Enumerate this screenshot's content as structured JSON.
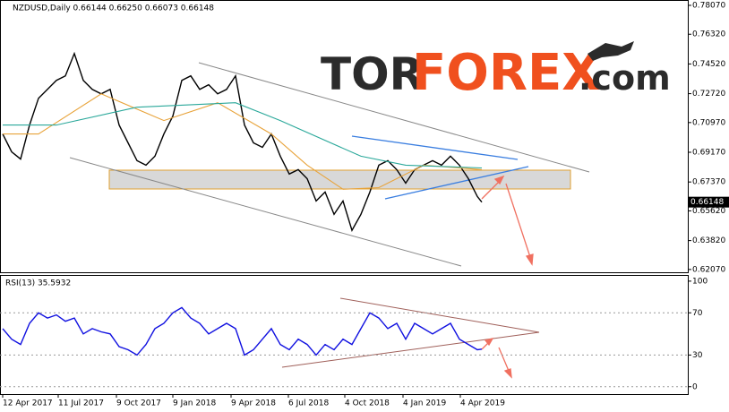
{
  "chart_data": [
    {
      "type": "line",
      "title": "NZDUSD,Daily  0.66144 0.66250 0.66073 0.66148",
      "last_price_label": "0.66148",
      "watermark": {
        "part1": "TOR",
        "part2": "FOREX",
        "part3": ".com"
      },
      "xlim": [
        -3,
        765
      ],
      "ylim": [
        0.619,
        0.7834
      ],
      "yticks": [
        {
          "value": 0.7807,
          "label": "0.78070"
        },
        {
          "value": 0.7632,
          "label": "0.76320"
        },
        {
          "value": 0.7452,
          "label": "0.74520"
        },
        {
          "value": 0.7272,
          "label": "0.72720"
        },
        {
          "value": 0.7097,
          "label": "0.70970"
        },
        {
          "value": 0.6917,
          "label": "0.69170"
        },
        {
          "value": 0.6737,
          "label": "0.67370"
        },
        {
          "value": 0.6562,
          "label": "0.65620"
        },
        {
          "value": 0.6382,
          "label": "0.63820"
        },
        {
          "value": 0.6207,
          "label": "0.62070"
        }
      ],
      "series": [
        {
          "color": "#000000",
          "x": [
            0,
            10,
            20,
            30,
            40,
            50,
            60,
            70,
            80,
            90,
            100,
            110,
            120,
            130,
            140,
            150,
            160,
            170,
            180,
            190,
            200,
            210,
            220,
            230,
            240,
            250,
            260,
            270,
            280,
            290,
            300,
            310,
            320,
            330,
            340,
            350,
            360,
            370,
            380,
            390,
            400,
            410,
            420,
            430,
            440,
            450,
            460,
            470,
            480,
            490,
            500,
            510,
            520,
            530,
            535
          ],
          "values": [
            0.7028,
            0.692,
            0.6876,
            0.7082,
            0.7244,
            0.7298,
            0.7353,
            0.738,
            0.7515,
            0.7353,
            0.7298,
            0.7271,
            0.7298,
            0.7082,
            0.6974,
            0.6866,
            0.6839,
            0.6893,
            0.7028,
            0.7136,
            0.7353,
            0.738,
            0.7298,
            0.7326,
            0.7271,
            0.7298,
            0.738,
            0.7082,
            0.6974,
            0.6947,
            0.7028,
            0.6893,
            0.6785,
            0.6812,
            0.6757,
            0.6622,
            0.6676,
            0.6541,
            0.6622,
            0.6444,
            0.6541,
            0.6676,
            0.6839,
            0.6866,
            0.6812,
            0.673,
            0.6812,
            0.6839,
            0.6866,
            0.6839,
            0.6893,
            0.6839,
            0.6757,
            0.6649,
            0.6615
          ]
        },
        {
          "color": "#e8a33a",
          "x": [
            0,
            40,
            110,
            180,
            240,
            300,
            340,
            380,
            420,
            470,
            535
          ],
          "values": [
            0.7028,
            0.7028,
            0.7271,
            0.7109,
            0.7217,
            0.7028,
            0.6839,
            0.6693,
            0.6703,
            0.6839,
            0.6812
          ]
        },
        {
          "color": "#2aa89a",
          "x": [
            0,
            60,
            150,
            260,
            310,
            400,
            450,
            535
          ],
          "values": [
            0.7082,
            0.7082,
            0.719,
            0.7217,
            0.7109,
            0.6893,
            0.6839,
            0.6822
          ]
        }
      ]
    },
    {
      "type": "line",
      "title": "RSI(13) 35.5932",
      "xlim": [
        -3,
        765
      ],
      "ylim": [
        -7,
        105
      ],
      "yticks": [
        100,
        70,
        30,
        0
      ],
      "xticks": [
        {
          "value": 0,
          "label": "12 Apr 2017"
        },
        {
          "value": 62,
          "label": "11 Jul 2017"
        },
        {
          "value": 127,
          "label": "9 Oct 2017"
        },
        {
          "value": 190,
          "label": "9 Jan 2018"
        },
        {
          "value": 255,
          "label": "9 Apr 2018"
        },
        {
          "value": 319,
          "label": "6 Jul 2018"
        },
        {
          "value": 382,
          "label": "4 Oct 2018"
        },
        {
          "value": 447,
          "label": "4 Jan 2019"
        },
        {
          "value": 511,
          "label": "4 Apr 2019"
        }
      ],
      "series": [
        {
          "color": "#1010e0",
          "x": [
            0,
            10,
            20,
            30,
            40,
            50,
            60,
            70,
            80,
            90,
            100,
            110,
            120,
            130,
            140,
            150,
            160,
            170,
            180,
            190,
            200,
            210,
            220,
            230,
            240,
            250,
            260,
            270,
            280,
            290,
            300,
            310,
            320,
            330,
            340,
            350,
            360,
            370,
            380,
            390,
            400,
            410,
            420,
            430,
            440,
            450,
            460,
            470,
            480,
            490,
            500,
            510,
            520,
            530,
            535
          ],
          "values": [
            55,
            45,
            40,
            60,
            70,
            65,
            68,
            62,
            65,
            50,
            55,
            52,
            50,
            38,
            35,
            30,
            40,
            55,
            60,
            70,
            75,
            65,
            60,
            50,
            55,
            60,
            55,
            30,
            35,
            45,
            55,
            40,
            35,
            45,
            40,
            30,
            40,
            35,
            45,
            40,
            55,
            70,
            65,
            55,
            60,
            45,
            60,
            55,
            50,
            55,
            60,
            45,
            40,
            35,
            35.59
          ]
        }
      ]
    }
  ]
}
